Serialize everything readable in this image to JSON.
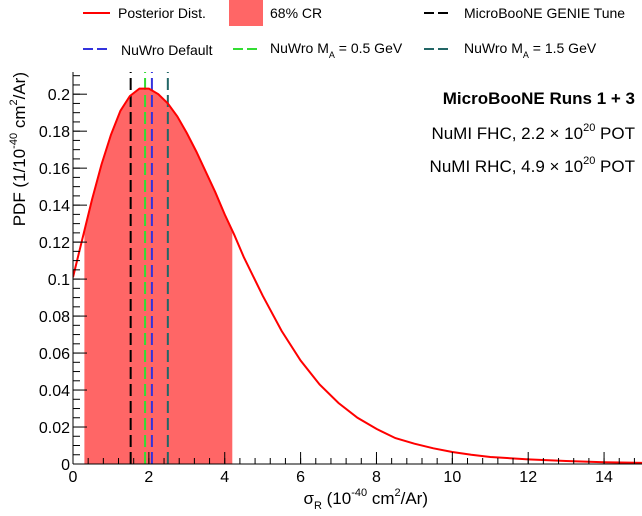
{
  "chart_data": {
    "type": "line",
    "xlabel": "σ",
    "xlabel_sub": "R",
    "xlabel_unit_pre": " (10",
    "xlabel_unit_exp": "-40",
    "xlabel_unit_mid": " cm",
    "xlabel_unit_exp2": "2",
    "xlabel_unit_post": "/Ar)",
    "ylabel_pre": "PDF (1/10",
    "ylabel_exp": "-40",
    "ylabel_mid": " cm",
    "ylabel_exp2": "2",
    "ylabel_post": "/Ar)",
    "xlim": [
      0,
      15
    ],
    "ylim": [
      0,
      0.212
    ],
    "x_ticks": [
      0,
      2,
      4,
      6,
      8,
      10,
      12,
      14
    ],
    "x_tick_labels": [
      "0",
      "2",
      "4",
      "6",
      "8",
      "10",
      "12",
      "14"
    ],
    "y_ticks": [
      0,
      0.02,
      0.04,
      0.06,
      0.08,
      0.1,
      0.12,
      0.14,
      0.16,
      0.18,
      0.2
    ],
    "y_tick_labels": [
      "0",
      "0.02",
      "0.04",
      "0.06",
      "0.08",
      "0.1",
      "0.12",
      "0.14",
      "0.16",
      "0.18",
      "0.2"
    ],
    "grid": false,
    "legend_position": "top",
    "series": [
      {
        "name": "Posterior Dist.",
        "color": "#ff0000",
        "x": [
          0,
          0.25,
          0.5,
          0.75,
          1.0,
          1.25,
          1.5,
          1.75,
          2.0,
          2.25,
          2.5,
          2.75,
          3.0,
          3.25,
          3.5,
          3.75,
          4.0,
          4.25,
          4.5,
          5.0,
          5.5,
          6.0,
          6.5,
          7.0,
          7.5,
          8.0,
          8.5,
          9.0,
          9.5,
          10.0,
          10.5,
          11.0,
          12.0,
          13.0,
          14.0,
          15.0
        ],
        "y": [
          0.101,
          0.122,
          0.143,
          0.162,
          0.178,
          0.191,
          0.199,
          0.203,
          0.203,
          0.2,
          0.195,
          0.188,
          0.179,
          0.169,
          0.158,
          0.147,
          0.135,
          0.124,
          0.112,
          0.091,
          0.072,
          0.056,
          0.043,
          0.033,
          0.025,
          0.019,
          0.014,
          0.011,
          0.0085,
          0.0065,
          0.005,
          0.0038,
          0.0025,
          0.0016,
          0.001,
          0.0006
        ]
      }
    ],
    "credible_region": {
      "name": "68% CR",
      "color": "#ff6666",
      "x_low": 0.3,
      "x_high": 4.2
    },
    "vertical_lines": [
      {
        "name": "MicroBooNE GENIE Tune",
        "x": 1.52,
        "color": "#000000"
      },
      {
        "name": "NuWro Default",
        "x": 2.08,
        "color": "#3333dd"
      },
      {
        "name": "NuWro M_A = 0.5 GeV",
        "x": 1.9,
        "color": "#33dd33"
      },
      {
        "name": "NuWro M_A = 1.5 GeV",
        "x": 2.5,
        "color": "#226666"
      }
    ],
    "annotations": {
      "title": "MicroBooNE Runs 1 + 3",
      "fhc_pre": "NuMI FHC, 2.2 × 10",
      "fhc_exp": "20",
      "fhc_post": " POT",
      "rhc_pre": "NuMI RHC, 4.9 × 10",
      "rhc_exp": "20",
      "rhc_post": " POT"
    },
    "legend": {
      "posterior": "Posterior Dist.",
      "cr": "68% CR",
      "genie": "MicroBooNE GENIE Tune",
      "nuwro_default": "NuWro Default",
      "nuwro_05_pre": "NuWro M",
      "nuwro_05_sub": "A",
      "nuwro_05_post": " = 0.5 GeV",
      "nuwro_15_pre": "NuWro M",
      "nuwro_15_sub": "A",
      "nuwro_15_post": " = 1.5 GeV"
    }
  }
}
